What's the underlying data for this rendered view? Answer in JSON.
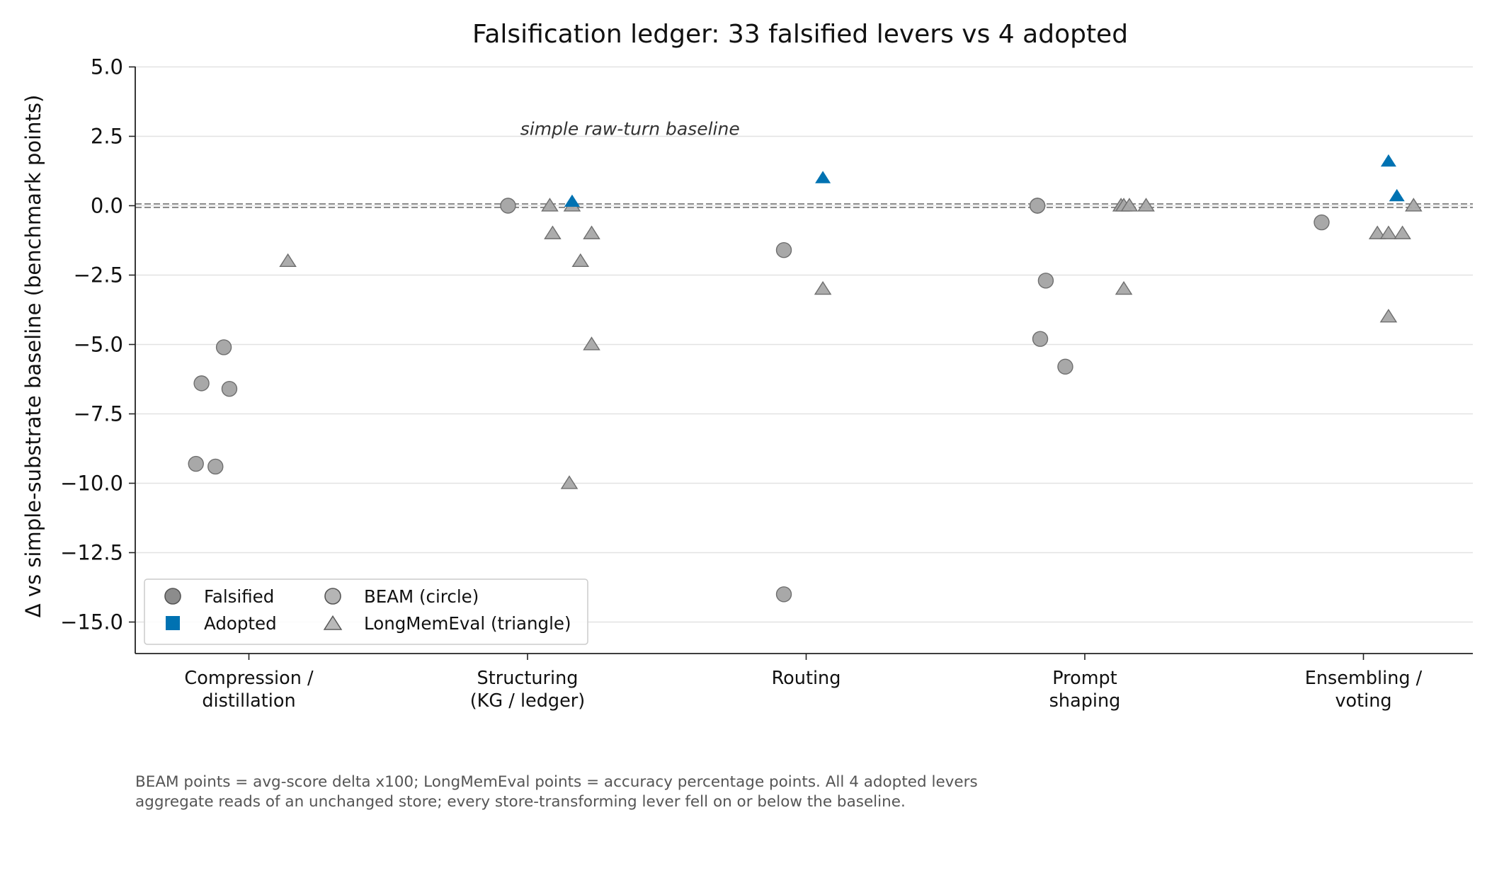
{
  "chart_data": {
    "type": "scatter",
    "title": "Falsification ledger: 33 falsified levers vs 4 adopted",
    "ylabel": "Δ vs simple-substrate baseline (benchmark points)",
    "xlabel": "",
    "ylim": [
      -16,
      5
    ],
    "y_ticks": [
      5.0,
      2.5,
      0.0,
      -2.5,
      -5.0,
      -7.5,
      -10.0,
      -12.5,
      -15.0
    ],
    "y_tick_labels": [
      "5.0",
      "2.5",
      "0.0",
      "−2.5",
      "−5.0",
      "−7.5",
      "−10.0",
      "−12.5",
      "−15.0"
    ],
    "categories": [
      {
        "lines": [
          "Compression /",
          "distillation"
        ]
      },
      {
        "lines": [
          "Structuring",
          "(KG / ledger)"
        ]
      },
      {
        "lines": [
          "Routing"
        ]
      },
      {
        "lines": [
          "Prompt",
          "shaping"
        ]
      },
      {
        "lines": [
          "Ensembling /",
          "voting"
        ]
      }
    ],
    "grid": "horizontal",
    "baseline": {
      "y": 0,
      "style": "double-dashed",
      "label": "simple raw-turn baseline",
      "label_x": 1.35,
      "label_y": 2.6
    },
    "legend": {
      "placement": "lower-left",
      "entries": [
        {
          "label": "Falsified",
          "marker": "circle",
          "color": "#8c8c8c"
        },
        {
          "label": "Adopted",
          "marker": "square",
          "color": "#0072b2"
        },
        {
          "label": "BEAM (circle)",
          "marker": "circle",
          "color": "#b5b5b5"
        },
        {
          "label": "LongMemEval (triangle)",
          "marker": "triangle",
          "color": "#b5b5b5"
        }
      ]
    },
    "colors": {
      "falsified": "#a8a8a8",
      "falsified_edge": "#6e6e6e",
      "adopted": "#0072b2"
    },
    "points": [
      {
        "x": -0.19,
        "y": -9.3,
        "benchmark": "BEAM",
        "status": "falsified"
      },
      {
        "x": -0.17,
        "y": -6.4,
        "benchmark": "BEAM",
        "status": "falsified"
      },
      {
        "x": -0.12,
        "y": -9.4,
        "benchmark": "BEAM",
        "status": "falsified"
      },
      {
        "x": -0.09,
        "y": -5.1,
        "benchmark": "BEAM",
        "status": "falsified"
      },
      {
        "x": -0.07,
        "y": -6.6,
        "benchmark": "BEAM",
        "status": "falsified"
      },
      {
        "x": 0.14,
        "y": -2.0,
        "benchmark": "LongMemEval",
        "status": "falsified"
      },
      {
        "x": 0.93,
        "y": 0.0,
        "benchmark": "BEAM",
        "status": "falsified"
      },
      {
        "x": 1.08,
        "y": 0.0,
        "benchmark": "LongMemEval",
        "status": "falsified"
      },
      {
        "x": 1.09,
        "y": -1.0,
        "benchmark": "LongMemEval",
        "status": "falsified"
      },
      {
        "x": 1.15,
        "y": -10.0,
        "benchmark": "LongMemEval",
        "status": "falsified"
      },
      {
        "x": 1.16,
        "y": 0.0,
        "benchmark": "LongMemEval",
        "status": "falsified"
      },
      {
        "x": 1.16,
        "y": 0.15,
        "benchmark": "LongMemEval",
        "status": "adopted"
      },
      {
        "x": 1.19,
        "y": -2.0,
        "benchmark": "LongMemEval",
        "status": "falsified"
      },
      {
        "x": 1.23,
        "y": -1.0,
        "benchmark": "LongMemEval",
        "status": "falsified"
      },
      {
        "x": 1.23,
        "y": -5.0,
        "benchmark": "LongMemEval",
        "status": "falsified"
      },
      {
        "x": 1.92,
        "y": -1.6,
        "benchmark": "BEAM",
        "status": "falsified"
      },
      {
        "x": 1.92,
        "y": -14.0,
        "benchmark": "BEAM",
        "status": "falsified"
      },
      {
        "x": 2.06,
        "y": 1.0,
        "benchmark": "LongMemEval",
        "status": "adopted"
      },
      {
        "x": 2.06,
        "y": -3.0,
        "benchmark": "LongMemEval",
        "status": "falsified"
      },
      {
        "x": 2.83,
        "y": 0.0,
        "benchmark": "BEAM",
        "status": "falsified"
      },
      {
        "x": 2.83,
        "y": 0.0,
        "benchmark": "BEAM",
        "status": "falsified"
      },
      {
        "x": 2.84,
        "y": -4.8,
        "benchmark": "BEAM",
        "status": "falsified"
      },
      {
        "x": 2.86,
        "y": -2.7,
        "benchmark": "BEAM",
        "status": "falsified"
      },
      {
        "x": 2.93,
        "y": -5.8,
        "benchmark": "BEAM",
        "status": "falsified"
      },
      {
        "x": 3.13,
        "y": 0.0,
        "benchmark": "LongMemEval",
        "status": "falsified"
      },
      {
        "x": 3.14,
        "y": 0.0,
        "benchmark": "LongMemEval",
        "status": "falsified"
      },
      {
        "x": 3.14,
        "y": -3.0,
        "benchmark": "LongMemEval",
        "status": "falsified"
      },
      {
        "x": 3.16,
        "y": 0.0,
        "benchmark": "LongMemEval",
        "status": "falsified"
      },
      {
        "x": 3.22,
        "y": 0.0,
        "benchmark": "LongMemEval",
        "status": "falsified"
      },
      {
        "x": 3.85,
        "y": -0.6,
        "benchmark": "BEAM",
        "status": "falsified"
      },
      {
        "x": 4.05,
        "y": -1.0,
        "benchmark": "LongMemEval",
        "status": "falsified"
      },
      {
        "x": 4.09,
        "y": -1.0,
        "benchmark": "LongMemEval",
        "status": "falsified"
      },
      {
        "x": 4.09,
        "y": -4.0,
        "benchmark": "LongMemEval",
        "status": "falsified"
      },
      {
        "x": 4.09,
        "y": 1.6,
        "benchmark": "LongMemEval",
        "status": "adopted"
      },
      {
        "x": 4.12,
        "y": 0.35,
        "benchmark": "LongMemEval",
        "status": "adopted"
      },
      {
        "x": 4.14,
        "y": -1.0,
        "benchmark": "LongMemEval",
        "status": "falsified"
      },
      {
        "x": 4.18,
        "y": 0.0,
        "benchmark": "LongMemEval",
        "status": "falsified"
      }
    ]
  },
  "footnote": {
    "line1": "BEAM points = avg-score delta x100; LongMemEval points = accuracy percentage points. All 4 adopted levers",
    "line2": "aggregate reads of an unchanged store; every store-transforming lever fell on or below the baseline."
  }
}
